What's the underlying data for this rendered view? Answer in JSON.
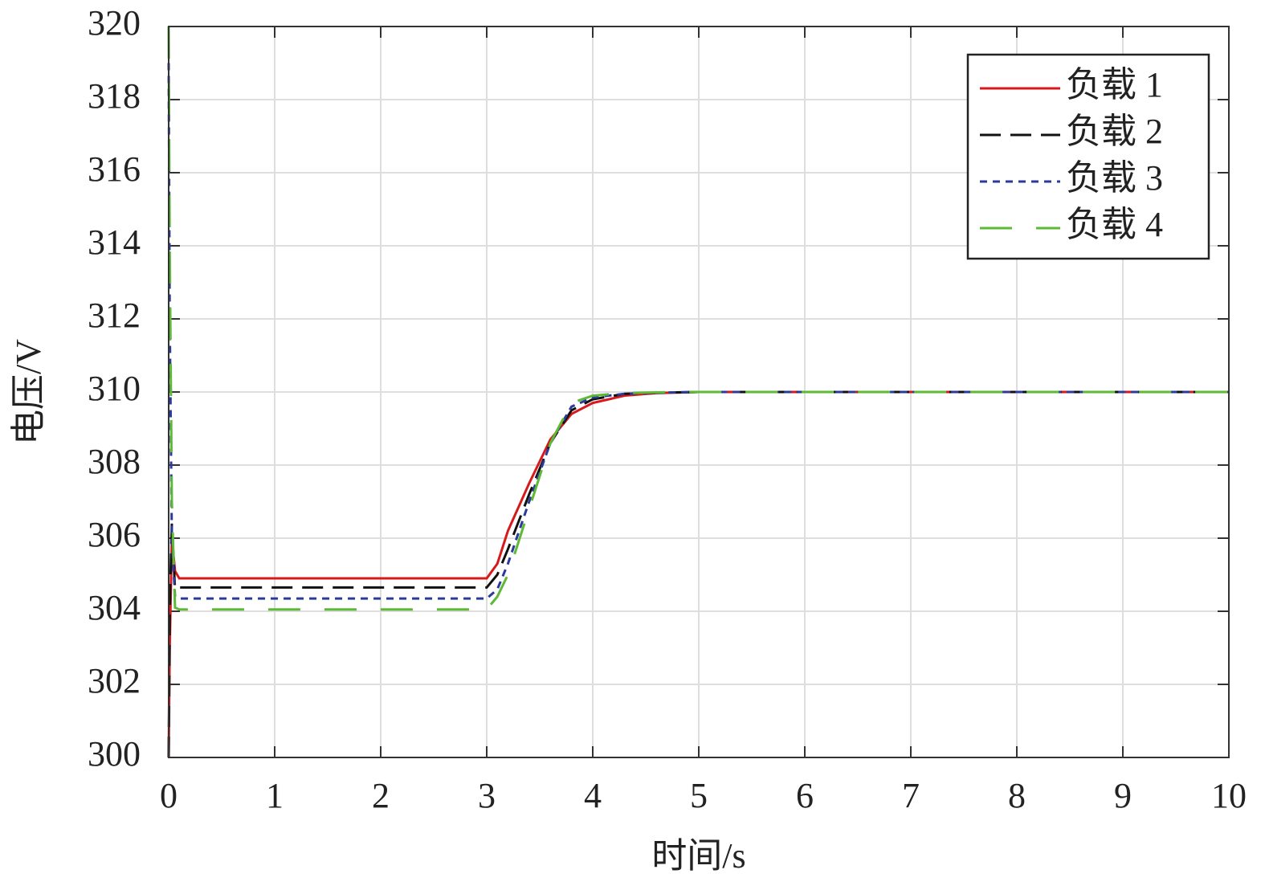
{
  "chart_data": {
    "type": "line",
    "xlabel": "时间/s",
    "ylabel": "电压/V",
    "x": [
      0,
      0.01,
      0.03,
      0.06,
      0.1,
      3,
      3.1,
      3.2,
      3.4,
      3.6,
      3.8,
      4,
      4.3,
      4.6,
      5,
      10
    ],
    "series": [
      {
        "name": "负载 1",
        "color": "#d7191c",
        "linestyle": "solid",
        "values": [
          300,
          303,
          306,
          305.1,
          304.9,
          304.9,
          305.3,
          306.2,
          307.5,
          308.7,
          309.4,
          309.7,
          309.9,
          309.97,
          310,
          310
        ]
      },
      {
        "name": "负载 2",
        "color": "#111111",
        "linestyle": "dashed",
        "values": [
          300,
          304,
          306.4,
          304.6,
          304.65,
          304.65,
          305.0,
          305.7,
          307.2,
          308.6,
          309.5,
          309.8,
          309.95,
          309.98,
          310,
          310
        ]
      },
      {
        "name": "负载 3",
        "color": "#2b3b9b",
        "linestyle": "dotted",
        "values": [
          319,
          312,
          306,
          304.4,
          304.35,
          304.35,
          304.6,
          305.3,
          307.0,
          308.6,
          309.6,
          309.85,
          309.95,
          309.98,
          310,
          310
        ]
      },
      {
        "name": "负载 4",
        "color": "#5db936",
        "linestyle": "longdash",
        "values": [
          320,
          314,
          307,
          304.1,
          304.05,
          304.05,
          304.4,
          305.0,
          306.8,
          308.6,
          309.7,
          309.9,
          309.97,
          309.99,
          310,
          310
        ]
      }
    ],
    "xlim": [
      0,
      10
    ],
    "xticks": [
      0,
      1,
      2,
      3,
      4,
      5,
      6,
      7,
      8,
      9,
      10
    ],
    "ylim": [
      300,
      320
    ],
    "yticks": [
      300,
      302,
      304,
      306,
      308,
      310,
      312,
      314,
      316,
      318,
      320
    ],
    "grid": true,
    "legend": "northeast"
  }
}
